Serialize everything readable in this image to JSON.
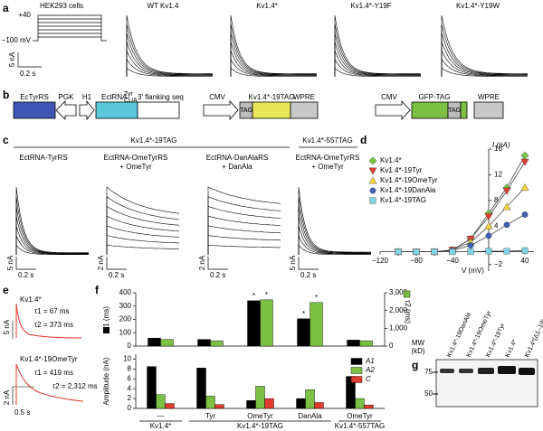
{
  "panel_labels": [
    "a",
    "b",
    "c",
    "d",
    "e",
    "f",
    "g"
  ],
  "panel_a": {
    "protocol_title": "HEK293 cells",
    "v_high": "+40",
    "v_low": "−100 mV",
    "scale_current": "5 nA",
    "scale_time": "0.2 s",
    "traces": [
      "WT Kv1.4",
      "Kv1.4*",
      "Kv1.4*-Y19F",
      "Kv1.4*-Y19W"
    ]
  },
  "panel_b": {
    "ectyrrs": "EcTyrRS",
    "pgk": "PGK",
    "h1": "H1",
    "ectrna": "EctRNA",
    "ectrna_sup": "Tyr",
    "ectrna_sub": "CUA",
    "flank": "3′ flanking seq",
    "cmv1": "CMV",
    "kv_tag": "Kv1.4*-19TAG",
    "tag1": "TAG",
    "wpre1": "WPRE",
    "cmv2": "CMV",
    "gfp_tag": "GFP-TAG",
    "tag2": "TAG",
    "wpre2": "WPRE"
  },
  "panel_c": {
    "group1": "Kv1.4*-19TAG",
    "group2": "Kv1.4*-557TAG",
    "conditions": [
      [
        "EctRNA-TyrRS"
      ],
      [
        "EctRNA-OmeTyrRS",
        "+ OmeTyr"
      ],
      [
        "EctRNA-DanAlaRS",
        "+ DanAla"
      ],
      [
        "EctRNA-OmeTyrRS",
        "+ OmeTyr"
      ]
    ],
    "scale_current": [
      "5 nA",
      "2 nA",
      "2 nA",
      "5 nA"
    ],
    "scale_time": [
      "0.2 s",
      "0.2 s",
      "0.2 s",
      "0.2 s"
    ]
  },
  "panel_e": {
    "trace1": "Kv1.4*",
    "tau1_1": "τ1 = 67 ms",
    "tau2_1": "τ2 = 373 ms",
    "scale1": "5 nA",
    "trace2": "Kv1.4*-19OmeTyr",
    "tau1_2": "τ1 = 419 ms",
    "tau2_2": "τ2 = 2,312 ms",
    "scale2": "2 nA",
    "scale_time": "0.5 s"
  },
  "panel_g": {
    "mw": "MW",
    "kd": "(kD)",
    "markers": [
      "75",
      "50"
    ],
    "lanes": [
      "Kv1.4*-19DanAla",
      "Kv1.4*-19OmeTyr",
      "Kv1.4*-19Tyr",
      "Kv1.4*",
      "Kv1.4*(Δ1–19)"
    ]
  },
  "chart_data": [
    {
      "type": "line",
      "xlabel": "V (mV)",
      "ylabel": "I (nA)",
      "x": [
        -100,
        -80,
        -60,
        -40,
        -20,
        0,
        20,
        40
      ],
      "series": [
        {
          "name": "Kv1.4*",
          "color": "#7bc043",
          "marker": "diamond",
          "values": [
            0,
            0,
            0,
            0.3,
            2,
            6,
            10,
            15
          ]
        },
        {
          "name": "Kv1.4*-19Tyr",
          "color": "#e03c31",
          "marker": "triangle-down",
          "values": [
            0,
            0,
            0,
            0.3,
            2,
            5.5,
            9.5,
            14
          ]
        },
        {
          "name": "Kv1.4*-19OmeTyr",
          "color": "#f2d43b",
          "marker": "triangle-up",
          "values": [
            0,
            0,
            0,
            0.3,
            1.5,
            4,
            7,
            10
          ]
        },
        {
          "name": "Kv1.4*-19DanAla",
          "color": "#3a5fb0",
          "marker": "circle",
          "values": [
            0,
            0,
            0,
            0.2,
            1,
            2.5,
            4.2,
            5.8
          ]
        },
        {
          "name": "Kv1.4*-19TAG",
          "color": "#7fd3e6",
          "marker": "square",
          "values": [
            0,
            0,
            0,
            0,
            0,
            0.1,
            0.1,
            0.2
          ]
        }
      ],
      "xlim": [
        -120,
        50
      ],
      "ylim": [
        -3,
        16
      ],
      "xticks": [
        {
          "value": -120,
          "label": "−120"
        },
        {
          "value": -80,
          "label": "−80"
        },
        {
          "value": -40,
          "label": "−40"
        },
        40
      ],
      "yticks": [
        {
          "value": -2,
          "label": "−2"
        },
        4,
        8,
        12,
        16
      ]
    },
    {
      "type": "bar",
      "ylabel": "τ1 (ms)",
      "y2label": "τ2 (ms)",
      "categories": [
        "",
        "",
        "",
        "",
        ""
      ],
      "series": [
        {
          "name": "τ1",
          "color": "#000000",
          "values": [
            60,
            50,
            340,
            205,
            45
          ],
          "markers": [
            null,
            null,
            "*",
            "*",
            null
          ]
        },
        {
          "name": "τ2",
          "color": "#7bc043",
          "axis": "y2",
          "values": [
            373,
            300,
            2600,
            2450,
            300
          ],
          "markers": [
            null,
            null,
            "*",
            "*",
            null
          ]
        }
      ],
      "ylim": [
        0,
        400
      ],
      "yticks": [
        0,
        100,
        200,
        300,
        400
      ],
      "y2lim": [
        0,
        3000
      ],
      "y2ticks": [
        0,
        {
          "value": 1000,
          "label": "1,000"
        },
        {
          "value": 2000,
          "label": "2,000"
        },
        {
          "value": 3000,
          "label": "3,000"
        }
      ]
    },
    {
      "type": "bar",
      "ylabel": "Amplitude (nA)",
      "categories": [
        "—",
        "Tyr",
        "OmeTyr",
        "DanAla",
        "OmeTyr"
      ],
      "groups": [
        "Kv1.4*",
        "Kv1.4*-19TAG",
        "Kv1.4*-557TAG"
      ],
      "series": [
        {
          "name": "A1",
          "color": "#000000",
          "values": [
            8.5,
            8.2,
            1.6,
            2.0,
            6.5
          ]
        },
        {
          "name": "A2",
          "color": "#7bc043",
          "values": [
            2.8,
            2.5,
            4.5,
            3.8,
            2.0
          ]
        },
        {
          "name": "C",
          "color": "#e03c31",
          "values": [
            1.0,
            0.8,
            2.0,
            1.2,
            0.7
          ]
        }
      ],
      "ylim": [
        0,
        11
      ],
      "yticks": [
        0,
        2,
        4,
        6,
        8,
        10
      ],
      "legend": "top-right"
    }
  ]
}
